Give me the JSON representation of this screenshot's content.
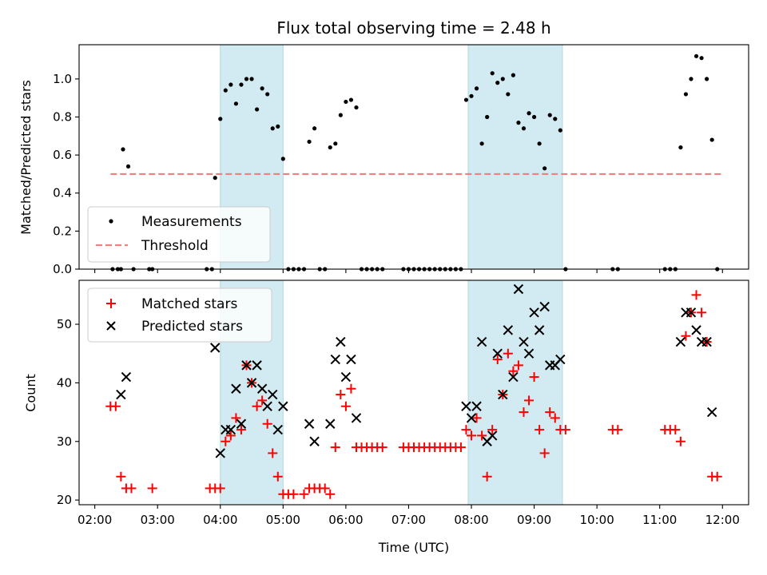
{
  "chart_data": {
    "type": "scatter",
    "title": "Flux total observing time = 2.48 h",
    "xlabel": "Time (UTC)",
    "x_tick_labels": [
      "02:00",
      "03:00",
      "04:00",
      "05:00",
      "06:00",
      "07:00",
      "08:00",
      "09:00",
      "10:00",
      "11:00",
      "12:00"
    ],
    "xlim": [
      "01:45",
      "12:25"
    ],
    "shaded_intervals": [
      [
        "04:00",
        "05:00"
      ],
      [
        "07:57",
        "09:27"
      ]
    ],
    "colors": {
      "measurements": "#000000",
      "threshold": "#f08080",
      "matched": "#ff0000",
      "predicted": "#000000",
      "shade": "#add8e6"
    },
    "top": {
      "ylabel": "Matched/Predicted stars",
      "ylim": [
        0,
        1.18
      ],
      "y_ticks": [
        "0.0",
        "0.2",
        "0.4",
        "0.6",
        "0.8",
        "1.0"
      ],
      "legend": {
        "placement": "lower-left",
        "entries": [
          "Measurements",
          "Threshold"
        ]
      },
      "threshold": {
        "value": 0.5,
        "x_range": [
          "02:15",
          "12:00"
        ]
      },
      "measurements": [
        [
          "02:17",
          0
        ],
        [
          "02:22",
          0
        ],
        [
          "02:25",
          0
        ],
        [
          "02:27",
          0.63
        ],
        [
          "02:32",
          0.54
        ],
        [
          "02:37",
          0
        ],
        [
          "02:52",
          0
        ],
        [
          "02:55",
          0
        ],
        [
          "03:47",
          0
        ],
        [
          "03:52",
          0
        ],
        [
          "03:55",
          0.48
        ],
        [
          "04:00",
          0.79
        ],
        [
          "04:05",
          0.94
        ],
        [
          "04:10",
          0.97
        ],
        [
          "04:15",
          0.87
        ],
        [
          "04:20",
          0.97
        ],
        [
          "04:25",
          1.0
        ],
        [
          "04:30",
          1.0
        ],
        [
          "04:35",
          0.84
        ],
        [
          "04:40",
          0.95
        ],
        [
          "04:45",
          0.92
        ],
        [
          "04:50",
          0.74
        ],
        [
          "04:55",
          0.75
        ],
        [
          "05:00",
          0.58
        ],
        [
          "05:05",
          0
        ],
        [
          "05:10",
          0
        ],
        [
          "05:15",
          0
        ],
        [
          "05:20",
          0
        ],
        [
          "05:25",
          0.67
        ],
        [
          "05:30",
          0.74
        ],
        [
          "05:35",
          0
        ],
        [
          "05:40",
          0
        ],
        [
          "05:45",
          0.64
        ],
        [
          "05:50",
          0.66
        ],
        [
          "05:55",
          0.81
        ],
        [
          "06:00",
          0.88
        ],
        [
          "06:05",
          0.89
        ],
        [
          "06:10",
          0.85
        ],
        [
          "06:15",
          0
        ],
        [
          "06:20",
          0
        ],
        [
          "06:25",
          0
        ],
        [
          "06:30",
          0
        ],
        [
          "06:35",
          0
        ],
        [
          "06:55",
          0
        ],
        [
          "07:00",
          0
        ],
        [
          "07:05",
          0
        ],
        [
          "07:10",
          0
        ],
        [
          "07:15",
          0
        ],
        [
          "07:20",
          0
        ],
        [
          "07:25",
          0
        ],
        [
          "07:30",
          0
        ],
        [
          "07:35",
          0
        ],
        [
          "07:40",
          0
        ],
        [
          "07:45",
          0
        ],
        [
          "07:50",
          0
        ],
        [
          "07:55",
          0.89
        ],
        [
          "08:00",
          0.91
        ],
        [
          "08:05",
          0.95
        ],
        [
          "08:10",
          0.66
        ],
        [
          "08:15",
          0.8
        ],
        [
          "08:20",
          1.03
        ],
        [
          "08:25",
          0.98
        ],
        [
          "08:30",
          1.0
        ],
        [
          "08:35",
          0.92
        ],
        [
          "08:40",
          1.02
        ],
        [
          "08:45",
          0.77
        ],
        [
          "08:50",
          0.74
        ],
        [
          "08:55",
          0.82
        ],
        [
          "09:00",
          0.8
        ],
        [
          "09:05",
          0.66
        ],
        [
          "09:10",
          0.53
        ],
        [
          "09:15",
          0.81
        ],
        [
          "09:20",
          0.79
        ],
        [
          "09:25",
          0.73
        ],
        [
          "09:30",
          0
        ],
        [
          "10:15",
          0
        ],
        [
          "10:20",
          0
        ],
        [
          "11:05",
          0
        ],
        [
          "11:10",
          0
        ],
        [
          "11:15",
          0
        ],
        [
          "11:20",
          0.64
        ],
        [
          "11:25",
          0.92
        ],
        [
          "11:30",
          1.0
        ],
        [
          "11:35",
          1.12
        ],
        [
          "11:40",
          1.11
        ],
        [
          "11:45",
          1.0
        ],
        [
          "11:50",
          0.68
        ],
        [
          "11:55",
          0
        ]
      ]
    },
    "bottom": {
      "ylabel": "Count",
      "ylim": [
        19.2,
        57.5
      ],
      "y_ticks": [
        "20",
        "30",
        "40",
        "50"
      ],
      "legend": {
        "placement": "upper-left",
        "entries": [
          "Matched stars",
          "Predicted stars"
        ]
      },
      "matched": [
        [
          "02:15",
          36
        ],
        [
          "02:20",
          36
        ],
        [
          "02:25",
          24
        ],
        [
          "02:30",
          22
        ],
        [
          "02:35",
          22
        ],
        [
          "02:55",
          22
        ],
        [
          "03:50",
          22
        ],
        [
          "03:55",
          22
        ],
        [
          "04:00",
          22
        ],
        [
          "04:05",
          30
        ],
        [
          "04:10",
          31
        ],
        [
          "04:15",
          34
        ],
        [
          "04:20",
          32
        ],
        [
          "04:25",
          43
        ],
        [
          "04:30",
          40
        ],
        [
          "04:35",
          36
        ],
        [
          "04:40",
          37
        ],
        [
          "04:45",
          33
        ],
        [
          "04:50",
          28
        ],
        [
          "04:55",
          24
        ],
        [
          "05:00",
          21
        ],
        [
          "05:05",
          21
        ],
        [
          "05:10",
          21
        ],
        [
          "05:20",
          21
        ],
        [
          "05:25",
          22
        ],
        [
          "05:30",
          22
        ],
        [
          "05:35",
          22
        ],
        [
          "05:40",
          22
        ],
        [
          "05:45",
          21
        ],
        [
          "05:50",
          29
        ],
        [
          "05:55",
          38
        ],
        [
          "06:00",
          36
        ],
        [
          "06:05",
          39
        ],
        [
          "06:10",
          29
        ],
        [
          "06:15",
          29
        ],
        [
          "06:20",
          29
        ],
        [
          "06:25",
          29
        ],
        [
          "06:30",
          29
        ],
        [
          "06:35",
          29
        ],
        [
          "06:55",
          29
        ],
        [
          "07:00",
          29
        ],
        [
          "07:05",
          29
        ],
        [
          "07:10",
          29
        ],
        [
          "07:15",
          29
        ],
        [
          "07:20",
          29
        ],
        [
          "07:25",
          29
        ],
        [
          "07:30",
          29
        ],
        [
          "07:35",
          29
        ],
        [
          "07:40",
          29
        ],
        [
          "07:45",
          29
        ],
        [
          "07:50",
          29
        ],
        [
          "07:55",
          32
        ],
        [
          "08:00",
          31
        ],
        [
          "08:05",
          34
        ],
        [
          "08:10",
          31
        ],
        [
          "08:15",
          24
        ],
        [
          "08:20",
          32
        ],
        [
          "08:25",
          44
        ],
        [
          "08:30",
          38
        ],
        [
          "08:35",
          45
        ],
        [
          "08:40",
          42
        ],
        [
          "08:45",
          43
        ],
        [
          "08:50",
          35
        ],
        [
          "08:55",
          37
        ],
        [
          "09:00",
          41
        ],
        [
          "09:05",
          32
        ],
        [
          "09:10",
          28
        ],
        [
          "09:15",
          35
        ],
        [
          "09:20",
          34
        ],
        [
          "09:25",
          32
        ],
        [
          "09:30",
          32
        ],
        [
          "10:15",
          32
        ],
        [
          "10:20",
          32
        ],
        [
          "11:05",
          32
        ],
        [
          "11:10",
          32
        ],
        [
          "11:15",
          32
        ],
        [
          "11:20",
          30
        ],
        [
          "11:25",
          48
        ],
        [
          "11:30",
          52
        ],
        [
          "11:35",
          55
        ],
        [
          "11:40",
          52
        ],
        [
          "11:45",
          47
        ],
        [
          "11:50",
          24
        ],
        [
          "11:55",
          24
        ]
      ],
      "predicted": [
        [
          "02:25",
          38
        ],
        [
          "02:30",
          41
        ],
        [
          "03:55",
          46
        ],
        [
          "04:00",
          28
        ],
        [
          "04:05",
          32
        ],
        [
          "04:10",
          32
        ],
        [
          "04:15",
          39
        ],
        [
          "04:20",
          33
        ],
        [
          "04:25",
          43
        ],
        [
          "04:30",
          40
        ],
        [
          "04:35",
          43
        ],
        [
          "04:40",
          39
        ],
        [
          "04:45",
          36
        ],
        [
          "04:50",
          38
        ],
        [
          "04:55",
          32
        ],
        [
          "05:00",
          36
        ],
        [
          "05:25",
          33
        ],
        [
          "05:30",
          30
        ],
        [
          "05:45",
          33
        ],
        [
          "05:50",
          44
        ],
        [
          "05:55",
          47
        ],
        [
          "06:00",
          41
        ],
        [
          "06:05",
          44
        ],
        [
          "06:10",
          34
        ],
        [
          "07:55",
          36
        ],
        [
          "08:00",
          34
        ],
        [
          "08:05",
          36
        ],
        [
          "08:10",
          47
        ],
        [
          "08:15",
          30
        ],
        [
          "08:20",
          31
        ],
        [
          "08:25",
          45
        ],
        [
          "08:30",
          38
        ],
        [
          "08:35",
          49
        ],
        [
          "08:40",
          41
        ],
        [
          "08:45",
          56
        ],
        [
          "08:50",
          47
        ],
        [
          "08:55",
          45
        ],
        [
          "09:00",
          52
        ],
        [
          "09:05",
          49
        ],
        [
          "09:10",
          53
        ],
        [
          "09:15",
          43
        ],
        [
          "09:20",
          43
        ],
        [
          "09:25",
          44
        ],
        [
          "11:20",
          47
        ],
        [
          "11:25",
          52
        ],
        [
          "11:30",
          52
        ],
        [
          "11:35",
          49
        ],
        [
          "11:40",
          47
        ],
        [
          "11:45",
          47
        ],
        [
          "11:50",
          35
        ]
      ]
    }
  }
}
